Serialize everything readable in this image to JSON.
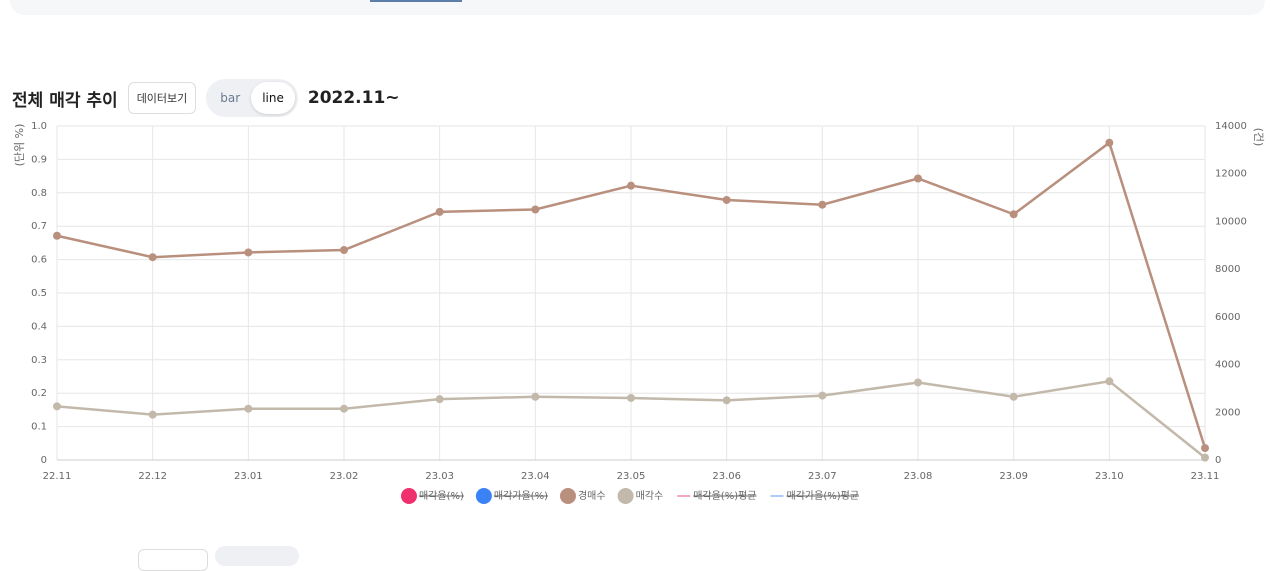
{
  "header": {
    "title": "전체 매각 추이",
    "data_button": "데이터보기",
    "toggle": [
      "bar",
      "line"
    ],
    "active_toggle": 1,
    "period": "2022.11~"
  },
  "chart_data": {
    "type": "line",
    "ylabel": "(단위 %)",
    "y2label": "(건)",
    "categories": [
      "22.11",
      "22.12",
      "23.01",
      "23.02",
      "23.03",
      "23.04",
      "23.05",
      "23.06",
      "23.07",
      "23.08",
      "23.09",
      "23.10",
      "23.11"
    ],
    "ylim": [
      0,
      1
    ],
    "yticks": [
      0,
      0.1,
      0.2,
      0.3,
      0.4,
      0.5,
      0.6,
      0.7,
      0.8,
      0.9,
      {
        "value": 1,
        "label": "1.0"
      }
    ],
    "y2lim": [
      0,
      14000
    ],
    "y2ticks": [
      0,
      2000,
      4000,
      6000,
      8000,
      10000,
      12000,
      14000
    ],
    "grid": true,
    "legend": "bottom",
    "series": [
      {
        "name": "매각율(%)",
        "color": "#f0306e",
        "marker": "circle",
        "hidden": true
      },
      {
        "name": "매각가율(%)",
        "color": "#3b82f6",
        "marker": "circle",
        "hidden": true
      },
      {
        "name": "경매수",
        "color": "#b98f7e",
        "marker": "circle",
        "hidden": false,
        "axis": "y2",
        "values": [
          9400,
          8500,
          8700,
          8800,
          10400,
          10500,
          11500,
          10900,
          10700,
          11800,
          10300,
          13300,
          500
        ]
      },
      {
        "name": "매각수",
        "color": "#c2b9ab",
        "marker": "circle",
        "hidden": false,
        "axis": "y2",
        "values": [
          2250,
          1900,
          2150,
          2150,
          2550,
          2650,
          2600,
          2500,
          2700,
          3250,
          2650,
          3300,
          100
        ]
      },
      {
        "name": "매각율(%)평균",
        "color": "#f08aa8",
        "marker": "line",
        "hidden": true
      },
      {
        "name": "매각가율(%)평균",
        "color": "#93b8f5",
        "marker": "line",
        "hidden": true
      }
    ]
  }
}
